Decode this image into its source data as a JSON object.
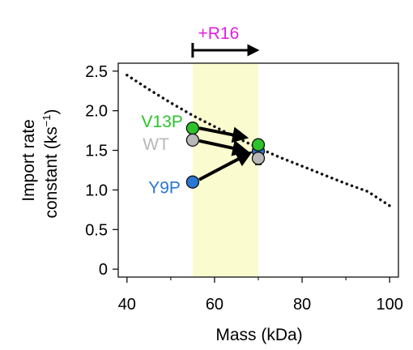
{
  "chart_data": {
    "type": "scatter",
    "xlabel": "Mass (kDa)",
    "ylabel_line1": "Import rate",
    "ylabel_line2_prefix": "constant (ks",
    "ylabel_sup": "−1",
    "ylabel_line2_suffix": ")",
    "xlim": [
      38,
      102
    ],
    "ylim": [
      -0.1,
      2.6
    ],
    "xticks": [
      40,
      60,
      80,
      100
    ],
    "xtick_labels": [
      "40",
      "60",
      "80",
      "100"
    ],
    "yticks": [
      0,
      0.5,
      1.0,
      1.5,
      2.0,
      2.5
    ],
    "ytick_labels": [
      "0",
      "0.5",
      "1.0",
      "1.5",
      "2.0",
      "2.5"
    ],
    "highlight_band": {
      "x0": 55,
      "x1": 70,
      "color": "#fbfbd0"
    },
    "fit_curve": {
      "style": "dotted",
      "color": "#111111",
      "x": [
        40,
        45,
        50,
        55,
        60,
        65,
        70,
        75,
        80,
        85,
        90,
        95,
        100
      ],
      "y": [
        2.45,
        2.27,
        2.1,
        1.94,
        1.8,
        1.66,
        1.53,
        1.41,
        1.3,
        1.19,
        1.08,
        0.98,
        0.8
      ]
    },
    "series": [
      {
        "name": "V13P",
        "color": "#2cc22c",
        "x": [
          55,
          70
        ],
        "y": [
          1.78,
          1.57
        ]
      },
      {
        "name": "WT",
        "color": "#b8b8b8",
        "x": [
          55,
          70
        ],
        "y": [
          1.63,
          1.4
        ]
      },
      {
        "name": "Y9P",
        "color": "#2b77d4",
        "x": [
          55,
          70
        ],
        "y": [
          1.1,
          1.49
        ]
      }
    ],
    "error_bar": {
      "x": 70,
      "y_low": 1.32,
      "y_high": 1.45
    },
    "annotation": {
      "label": "+R16",
      "color": "#e020e0",
      "x_start": 55,
      "x_end": 70
    },
    "arrows": [
      {
        "from": [
          56.5,
          1.78
        ],
        "to": [
          66.5,
          1.67
        ]
      },
      {
        "from": [
          56.5,
          1.62
        ],
        "to": [
          66.5,
          1.5
        ]
      },
      {
        "from": [
          56.5,
          1.13
        ],
        "to": [
          67.5,
          1.45
        ]
      }
    ]
  }
}
